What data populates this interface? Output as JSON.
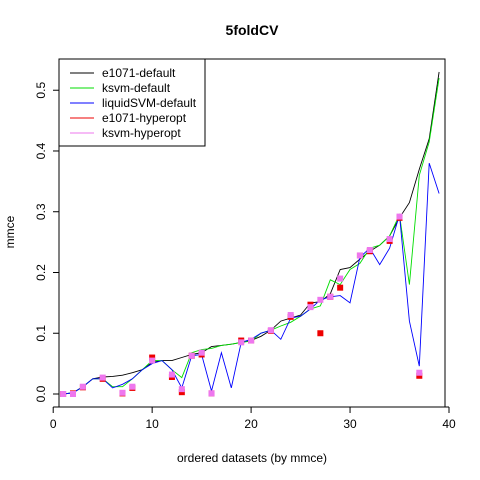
{
  "chart_data": {
    "type": "line",
    "title": "5foldCV",
    "xlabel": "ordered datasets (by mmce)",
    "ylabel": "mmce",
    "xlim": [
      1,
      39
    ],
    "ylim": [
      0,
      0.53
    ],
    "xticks": [
      0,
      10,
      20,
      30,
      40
    ],
    "yticks": [
      0.0,
      0.1,
      0.2,
      0.3,
      0.4,
      0.5
    ],
    "xtick_labels": [
      "0",
      "10",
      "20",
      "30",
      "40"
    ],
    "ytick_labels": [
      "0.0",
      "0.1",
      "0.2",
      "0.3",
      "0.4",
      "0.5"
    ],
    "legend_position": "top-left",
    "x": [
      1,
      2,
      3,
      4,
      5,
      6,
      7,
      8,
      9,
      10,
      11,
      12,
      13,
      14,
      15,
      16,
      17,
      18,
      19,
      20,
      21,
      22,
      23,
      24,
      25,
      26,
      27,
      28,
      29,
      30,
      31,
      32,
      33,
      34,
      35,
      36,
      37,
      38,
      39
    ],
    "series": [
      {
        "name": "e1071-default",
        "color": "#000000",
        "kind": "line",
        "values": [
          0.0,
          0.002,
          0.012,
          0.025,
          0.028,
          0.029,
          0.031,
          0.035,
          0.04,
          0.052,
          0.055,
          0.055,
          0.06,
          0.065,
          0.068,
          0.078,
          0.08,
          0.082,
          0.085,
          0.088,
          0.095,
          0.105,
          0.12,
          0.125,
          0.13,
          0.15,
          0.152,
          0.165,
          0.205,
          0.208,
          0.222,
          0.235,
          0.245,
          0.26,
          0.29,
          0.315,
          0.37,
          0.42,
          0.53
        ]
      },
      {
        "name": "ksvm-default",
        "color": "#00dd00",
        "kind": "line",
        "values": [
          0.0,
          0.002,
          0.012,
          0.025,
          0.025,
          0.012,
          0.012,
          0.025,
          0.04,
          0.055,
          0.055,
          0.04,
          0.027,
          0.068,
          0.073,
          0.075,
          0.08,
          0.082,
          0.085,
          0.087,
          0.1,
          0.105,
          0.112,
          0.118,
          0.128,
          0.14,
          0.145,
          0.188,
          0.18,
          0.205,
          0.215,
          0.24,
          0.245,
          0.26,
          0.295,
          0.18,
          0.36,
          0.415,
          0.52
        ]
      },
      {
        "name": "liquidSVM-default",
        "color": "#0000ff",
        "kind": "line",
        "values": [
          0.0,
          0.002,
          0.012,
          0.025,
          0.025,
          0.01,
          0.016,
          0.025,
          0.04,
          0.05,
          0.055,
          0.04,
          0.01,
          0.063,
          0.065,
          0.005,
          0.068,
          0.01,
          0.085,
          0.09,
          0.1,
          0.105,
          0.09,
          0.125,
          0.128,
          0.14,
          0.155,
          0.16,
          0.162,
          0.15,
          0.225,
          0.24,
          0.213,
          0.24,
          0.295,
          0.12,
          0.046,
          0.38,
          0.33
        ]
      },
      {
        "name": "e1071-hyperopt",
        "color": "#ee0000",
        "kind": "point",
        "values": [
          0.0,
          0.001,
          0.011,
          null,
          0.025,
          null,
          0.001,
          0.01,
          null,
          0.06,
          null,
          0.028,
          0.003,
          0.063,
          0.065,
          0.001,
          null,
          null,
          0.088,
          0.088,
          null,
          0.104,
          null,
          0.127,
          null,
          0.147,
          0.1,
          0.16,
          0.175,
          null,
          0.228,
          0.235,
          null,
          0.252,
          0.29,
          null,
          0.03,
          null,
          null
        ]
      },
      {
        "name": "ksvm-hyperopt",
        "color": "#ee77ee",
        "kind": "point",
        "values": [
          0.0,
          0.0,
          0.012,
          null,
          0.027,
          null,
          0.002,
          0.012,
          null,
          0.055,
          null,
          0.032,
          0.008,
          0.063,
          0.068,
          0.001,
          null,
          null,
          0.085,
          0.088,
          null,
          0.105,
          null,
          0.13,
          null,
          0.143,
          0.155,
          0.16,
          0.19,
          null,
          0.228,
          0.237,
          null,
          0.255,
          0.292,
          null,
          0.035,
          null,
          null
        ]
      }
    ]
  }
}
